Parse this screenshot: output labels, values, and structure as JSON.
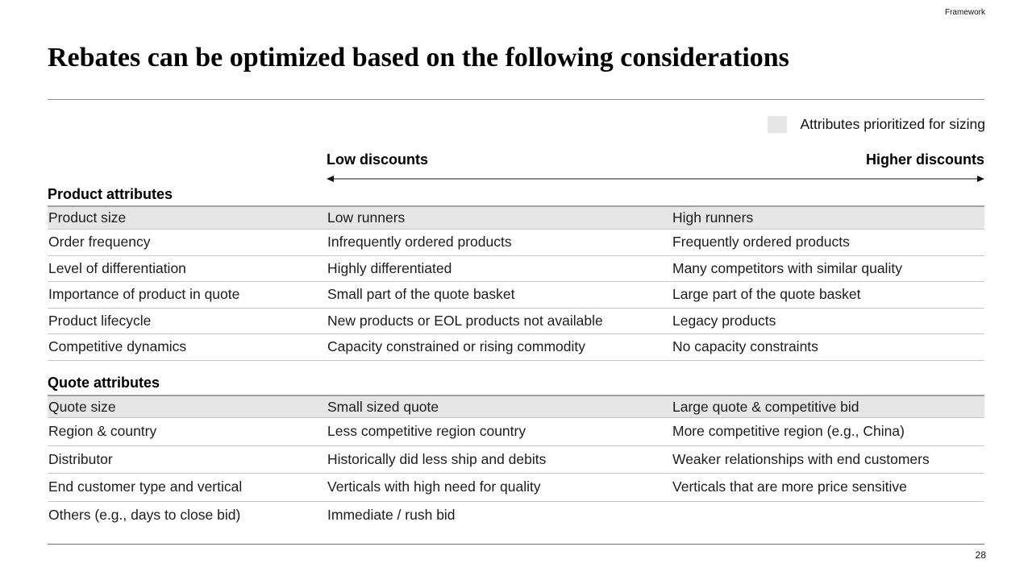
{
  "page": {
    "tag": "Framework",
    "title": "Rebates can be optimized based on the following considerations",
    "page_number": "28"
  },
  "legend": {
    "label": "Attributes prioritized for sizing",
    "swatch_color": "#e6e6e6"
  },
  "scale": {
    "left_label": "Low discounts",
    "right_label": "Higher discounts"
  },
  "sections": [
    {
      "heading": "Product attributes",
      "rows": [
        {
          "attribute": "Product size",
          "low": "Low runners",
          "high": "High runners",
          "highlighted": true
        },
        {
          "attribute": "Order frequency",
          "low": "Infrequently ordered products",
          "high": "Frequently ordered products",
          "highlighted": false
        },
        {
          "attribute": "Level of differentiation",
          "low": "Highly differentiated",
          "high": "Many competitors with similar quality",
          "highlighted": false
        },
        {
          "attribute": "Importance of product in quote",
          "low": "Small part of the quote basket",
          "high": "Large part of the quote basket",
          "highlighted": false
        },
        {
          "attribute": "Product lifecycle",
          "low": "New products or EOL products not available",
          "high": "Legacy products",
          "highlighted": false
        },
        {
          "attribute": "Competitive dynamics",
          "low": "Capacity constrained or rising commodity",
          "high": "No capacity constraints",
          "highlighted": false
        }
      ]
    },
    {
      "heading": "Quote attributes",
      "rows": [
        {
          "attribute": "Quote size",
          "low": "Small sized quote",
          "high": "Large quote & competitive bid",
          "highlighted": true
        },
        {
          "attribute": "Region & country",
          "low": "Less competitive region country",
          "high": "More competitive region (e.g., China)",
          "highlighted": false
        },
        {
          "attribute": "Distributor",
          "low": "Historically did less ship and debits",
          "high": "Weaker relationships with end customers",
          "highlighted": false
        },
        {
          "attribute": "End customer type and vertical",
          "low": "Verticals with high need for quality",
          "high": "Verticals that are more price sensitive",
          "highlighted": false
        },
        {
          "attribute": "Others (e.g., days to close bid)",
          "low": "Immediate / rush bid",
          "high": "",
          "highlighted": false
        }
      ]
    }
  ],
  "colors": {
    "highlight_row": "#e6e6e6",
    "row_border": "#c6c6c6",
    "table_top_border": "#a0a0a0",
    "title_rule": "#8f8f8f",
    "arrow_shaft": "#8a8a8a",
    "arrow_head": "#111111"
  }
}
